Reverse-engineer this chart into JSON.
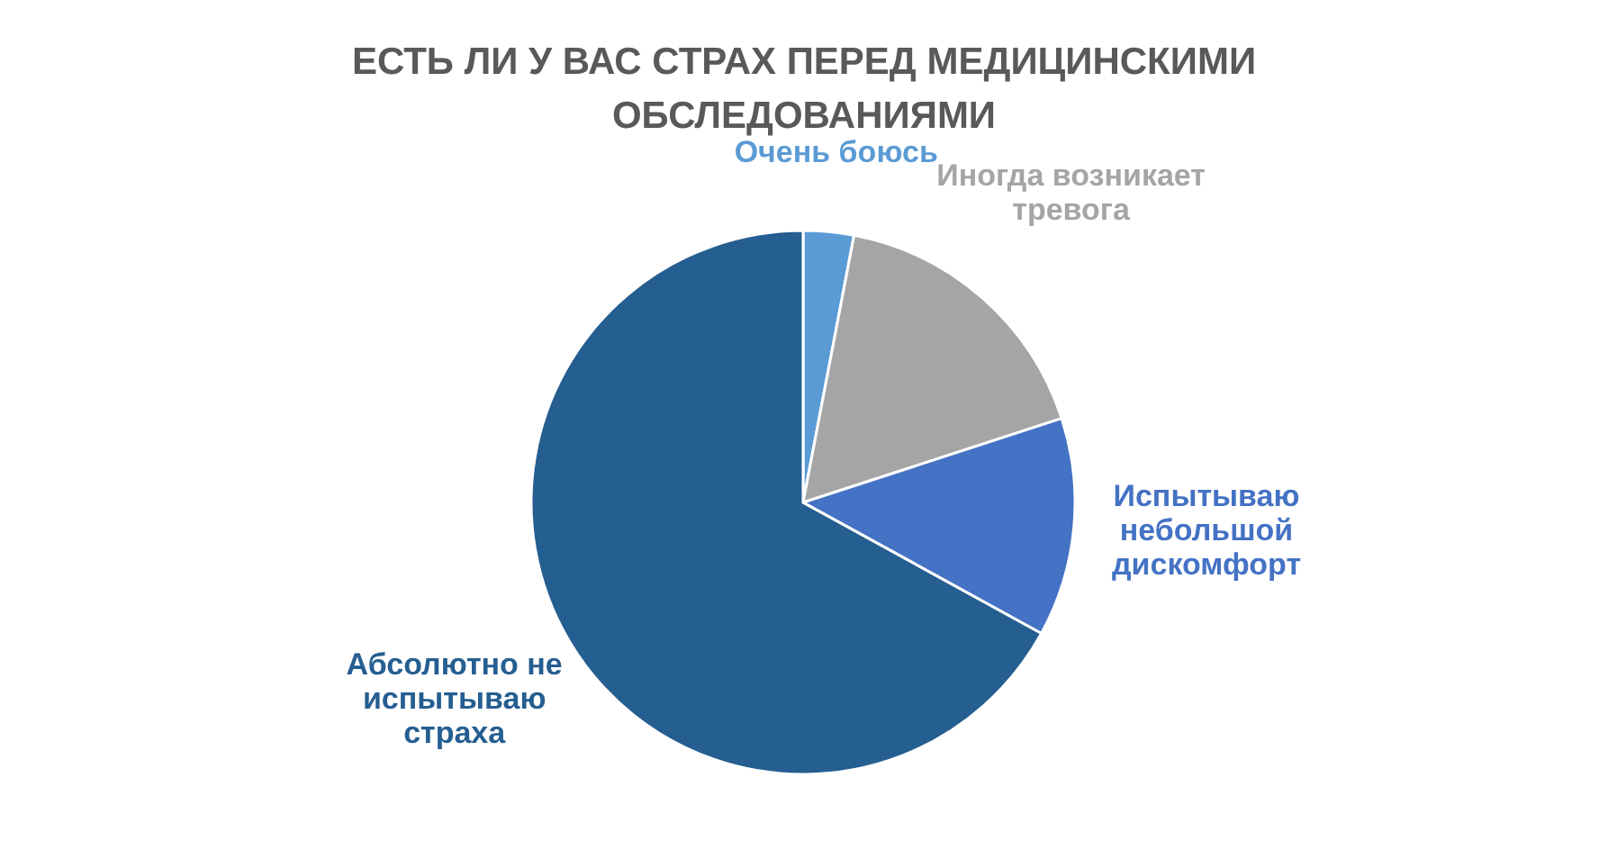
{
  "chart_data": {
    "type": "pie",
    "title": "ЕСТЬ ЛИ У ВАС СТРАХ ПЕРЕД МЕДИЦИНСКИМИ ОБСЛЕДОВАНИЯМИ",
    "categories": [
      "Очень боюсь",
      "Иногда возникает\nтревога",
      "Испытываю\nнебольшой\nдискомфорт",
      "Абсолютно не\nиспытываю\nстраха"
    ],
    "values": [
      3,
      17,
      13,
      67
    ],
    "colors": [
      "#5b9bd5",
      "#a5a5a5",
      "#4472c4",
      "#255e91"
    ]
  }
}
